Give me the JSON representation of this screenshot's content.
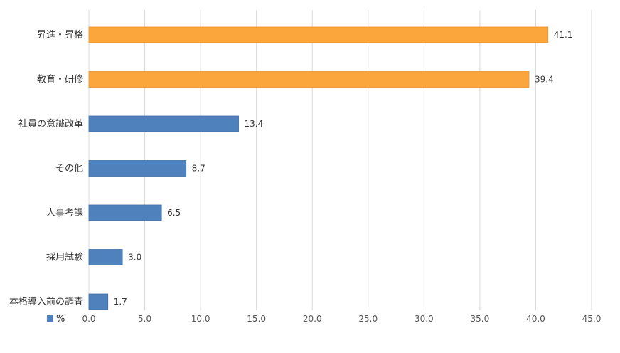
{
  "chart_data": {
    "type": "bar",
    "orientation": "horizontal",
    "categories": [
      "昇進・昇格",
      "教育・研修",
      "社員の意識改革",
      "その他",
      "人事考課",
      "採用試験",
      "本格導入前の調査"
    ],
    "series": [
      {
        "name": "%",
        "values": [
          41.1,
          39.4,
          13.4,
          8.7,
          6.5,
          3.0,
          1.7
        ]
      }
    ],
    "data_labels": [
      "41.1",
      "39.4",
      "13.4",
      "8.7",
      "6.5",
      "3.0",
      "1.7"
    ],
    "x_ticks": [
      "0.0",
      "5.0",
      "10.0",
      "15.0",
      "20.0",
      "25.0",
      "30.0",
      "35.0",
      "40.0",
      "45.0"
    ],
    "xlim": [
      0,
      45
    ],
    "grid": "vertical",
    "legend": "bottom-left",
    "colors": {
      "highlight": "#FBA63C",
      "highlight_border": "#E8912A",
      "default": "#4F81BD",
      "default_border": "#3E6EA6",
      "grid": "#D9D9D9"
    },
    "highlight_indices": [
      0,
      1
    ]
  }
}
